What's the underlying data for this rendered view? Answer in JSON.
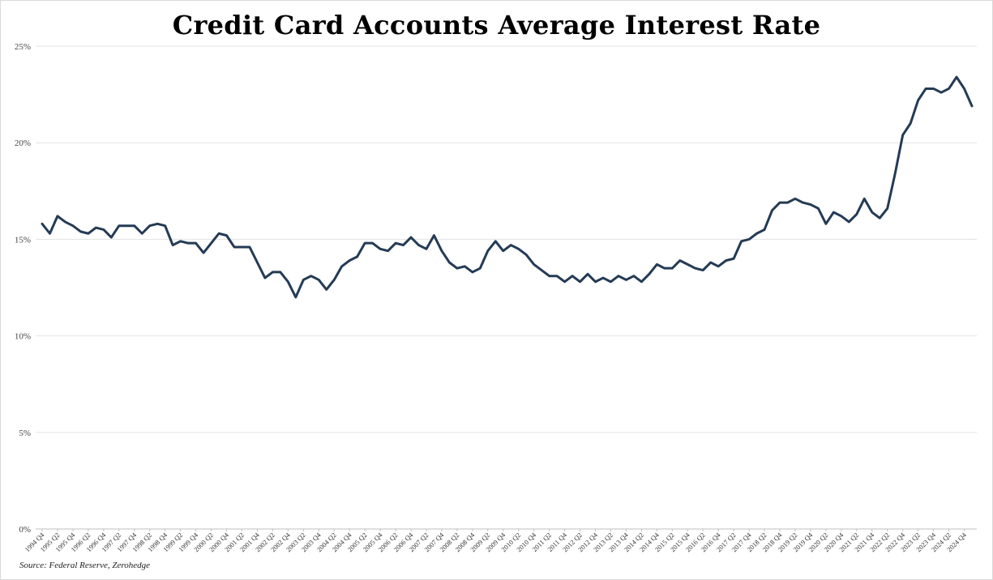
{
  "chart_data": {
    "type": "line",
    "title": "Credit Card Accounts Average Interest Rate",
    "source": "Source: Federal Reserve, Zerohedge",
    "xlabel": "",
    "ylabel": "",
    "ylim": [
      0,
      25
    ],
    "yticks": [
      "0%",
      "5%",
      "10%",
      "15%",
      "20%",
      "25%"
    ],
    "grid": true,
    "line_color": "#243b55",
    "x_tick_labels": [
      "1994 Q4",
      "1995 Q2",
      "1995 Q4",
      "1996 Q2",
      "1996 Q4",
      "1997 Q2",
      "1997 Q4",
      "1998 Q2",
      "1998 Q4",
      "1999 Q2",
      "1999 Q4",
      "2000 Q2",
      "2000 Q4",
      "2001 Q2",
      "2001 Q4",
      "2002 Q2",
      "2002 Q4",
      "2003 Q2",
      "2003 Q4",
      "2004 Q2",
      "2004 Q4",
      "2005 Q2",
      "2005 Q4",
      "2006 Q2",
      "2006 Q4",
      "2007 Q2",
      "2007 Q4",
      "2008 Q2",
      "2008 Q4",
      "2009 Q2",
      "2009 Q4",
      "2010 Q2",
      "2010 Q4",
      "2011 Q2",
      "2011 Q4",
      "2012 Q2",
      "2012 Q4",
      "2013 Q2",
      "2013 Q4",
      "2014 Q2",
      "2014 Q4",
      "2015 Q2",
      "2015 Q4",
      "2016 Q2",
      "2016 Q4",
      "2017 Q2",
      "2017 Q4",
      "2018 Q2",
      "2018 Q4",
      "2019 Q2",
      "2019 Q4",
      "2020 Q2",
      "2020 Q4",
      "2021 Q2",
      "2021 Q4",
      "2022 Q2",
      "2022 Q4",
      "2023 Q2",
      "2023 Q4",
      "2024 Q2",
      "2024 Q4"
    ],
    "series": [
      {
        "values": [
          15.8,
          15.3,
          16.2,
          15.9,
          15.7,
          15.4,
          15.3,
          15.6,
          15.5,
          15.1,
          15.7,
          15.7,
          15.7,
          15.3,
          15.7,
          15.8,
          15.7,
          14.7,
          14.9,
          14.8,
          14.8,
          14.3,
          14.8,
          15.3,
          15.2,
          14.6,
          14.6,
          14.6,
          13.8,
          13.0,
          13.3,
          13.3,
          12.8,
          12.0,
          12.9,
          13.1,
          12.9,
          12.4,
          12.9,
          13.6,
          13.9,
          14.1,
          14.8,
          14.8,
          14.5,
          14.4,
          14.8,
          14.7,
          15.1,
          14.7,
          14.5,
          15.2,
          14.4,
          13.8,
          13.5,
          13.6,
          13.3,
          13.5,
          14.4,
          14.9,
          14.4,
          14.7,
          14.5,
          14.2,
          13.7,
          13.4,
          13.1,
          13.1,
          12.8,
          13.1,
          12.8,
          13.2,
          12.8,
          13.0,
          12.8,
          13.1,
          12.9,
          13.1,
          12.8,
          13.2,
          13.7,
          13.5,
          13.5,
          13.9,
          13.7,
          13.5,
          13.4,
          13.8,
          13.6,
          13.9,
          14.0,
          14.9,
          15.0,
          15.3,
          15.5,
          16.5,
          16.9,
          16.9,
          17.1,
          16.9,
          16.8,
          16.6,
          15.8,
          16.4,
          16.2,
          15.9,
          16.3,
          17.1,
          16.4,
          16.1,
          16.6,
          18.4,
          20.4,
          21.0,
          22.2,
          22.8,
          22.8,
          22.6,
          22.8,
          23.4,
          22.8,
          21.9
        ]
      }
    ]
  }
}
